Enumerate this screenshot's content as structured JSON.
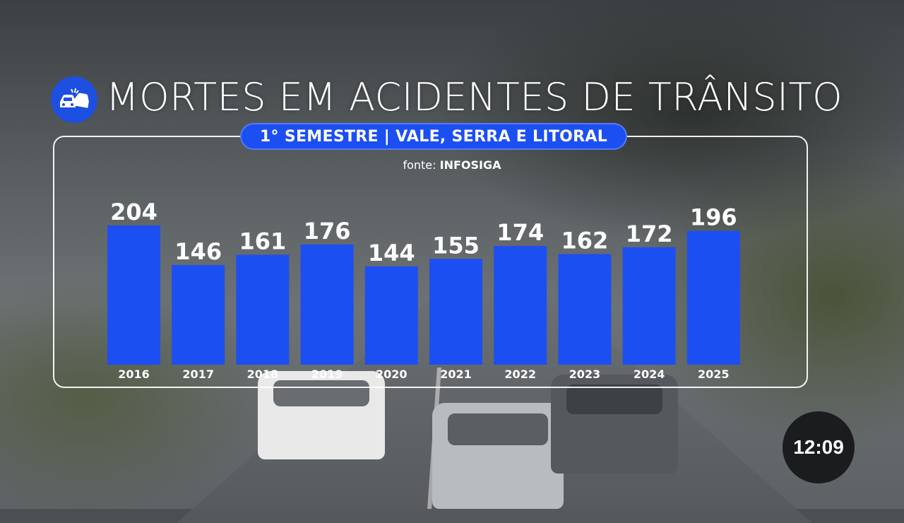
{
  "header": {
    "title": "MORTES EM ACIDENTES DE TRÂNSITO",
    "icon": "car-crash-icon",
    "subtitle": "1° SEMESTRE | VALE, SERRA E LITORAL",
    "source_prefix": "fonte:",
    "source_name": "INFOSIGA"
  },
  "clock": {
    "time": "12:09"
  },
  "colors": {
    "bar": "#1c4ff2",
    "accent": "#1d4fe0",
    "text": "#ffffff"
  },
  "chart_data": {
    "type": "bar",
    "categories": [
      "2016",
      "2017",
      "2018",
      "2019",
      "2020",
      "2021",
      "2022",
      "2023",
      "2024",
      "2025"
    ],
    "values": [
      204,
      146,
      161,
      176,
      144,
      155,
      174,
      162,
      172,
      196
    ],
    "title": "MORTES EM ACIDENTES DE TRÂNSITO",
    "subtitle": "1° SEMESTRE | VALE, SERRA E LITORAL",
    "xlabel": "",
    "ylabel": "",
    "data_labels": true,
    "grid": false,
    "legend": "none"
  }
}
